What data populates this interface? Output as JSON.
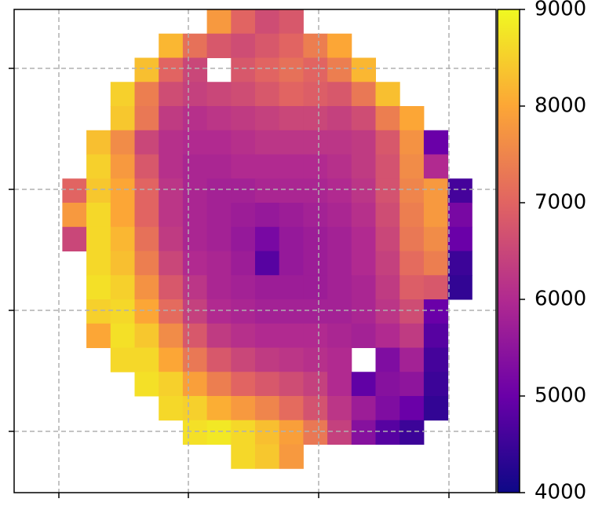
{
  "chart_data": {
    "type": "heatmap",
    "colormap": [
      "#0d0887",
      "#6a00a8",
      "#b12a90",
      "#e16462",
      "#fca636",
      "#f0f921"
    ],
    "zlim": [
      4000,
      9000
    ],
    "cbar_ticks": [
      4000,
      5000,
      6000,
      7000,
      8000,
      9000
    ],
    "grid": true,
    "z": [
      [
        null,
        null,
        null,
        null,
        null,
        null,
        null,
        null,
        7800,
        7000,
        6600,
        6800,
        null,
        null,
        null,
        null,
        null,
        null,
        null,
        null
      ],
      [
        null,
        null,
        null,
        null,
        null,
        null,
        8200,
        7200,
        6800,
        6600,
        6800,
        7000,
        7400,
        8000,
        null,
        null,
        null,
        null,
        null,
        null
      ],
      [
        null,
        null,
        null,
        null,
        null,
        8300,
        7000,
        6500,
        null,
        6800,
        7000,
        7200,
        7000,
        7400,
        8200,
        null,
        null,
        null,
        null,
        null
      ],
      [
        null,
        null,
        null,
        null,
        8500,
        7400,
        6600,
        6400,
        6500,
        6600,
        6800,
        7000,
        6900,
        6800,
        7300,
        8300,
        null,
        null,
        null,
        null
      ],
      [
        null,
        null,
        null,
        null,
        8400,
        7300,
        6300,
        6100,
        6200,
        6300,
        6400,
        6500,
        6500,
        6400,
        6600,
        7400,
        8000,
        null,
        null,
        null
      ],
      [
        null,
        null,
        null,
        8300,
        7600,
        6500,
        6100,
        6000,
        6000,
        6100,
        6200,
        6200,
        6200,
        6200,
        6300,
        6800,
        7700,
        5000,
        null,
        null
      ],
      [
        null,
        null,
        null,
        8500,
        7800,
        6800,
        6100,
        5900,
        5900,
        6000,
        6000,
        6000,
        6000,
        6100,
        6300,
        6700,
        7600,
        6000,
        null,
        null
      ],
      [
        null,
        null,
        7000,
        8400,
        8000,
        7000,
        6200,
        5900,
        5800,
        5800,
        5900,
        5900,
        5900,
        6000,
        6200,
        6700,
        7500,
        7800,
        4600,
        null
      ],
      [
        null,
        null,
        7800,
        8600,
        8000,
        7000,
        6200,
        5900,
        5800,
        5700,
        5600,
        5700,
        5800,
        5900,
        6100,
        6600,
        7400,
        7800,
        5200,
        null
      ],
      [
        null,
        null,
        6500,
        8600,
        8200,
        7200,
        6300,
        5900,
        5800,
        5600,
        5200,
        5600,
        5700,
        5800,
        6000,
        6500,
        7300,
        7600,
        5000,
        null
      ],
      [
        null,
        null,
        null,
        8600,
        8300,
        7400,
        6500,
        6000,
        5900,
        5700,
        4800,
        5600,
        5700,
        5800,
        6000,
        6400,
        7100,
        7400,
        4500,
        null
      ],
      [
        null,
        null,
        null,
        8700,
        8500,
        7700,
        6800,
        6200,
        5900,
        5800,
        5700,
        5700,
        5700,
        5800,
        5900,
        6300,
        6900,
        6800,
        4400,
        null
      ],
      [
        null,
        null,
        null,
        8500,
        8600,
        8000,
        7100,
        6400,
        6000,
        5900,
        5800,
        5800,
        5800,
        5800,
        5900,
        6200,
        6600,
        5000,
        null,
        null
      ],
      [
        null,
        null,
        null,
        8000,
        8700,
        8400,
        7600,
        6800,
        6300,
        6100,
        6000,
        6000,
        6000,
        5900,
        5800,
        6000,
        6300,
        4800,
        null,
        null
      ],
      [
        null,
        null,
        null,
        null,
        8600,
        8600,
        8000,
        7300,
        6800,
        6500,
        6300,
        6200,
        6100,
        6000,
        null,
        5300,
        5800,
        4600,
        null,
        null
      ],
      [
        null,
        null,
        null,
        null,
        null,
        8700,
        8500,
        7900,
        7400,
        7000,
        6800,
        6600,
        6400,
        6000,
        4900,
        5400,
        5500,
        4500,
        null,
        null
      ],
      [
        null,
        null,
        null,
        null,
        null,
        null,
        8600,
        8500,
        8100,
        7800,
        7500,
        7100,
        6700,
        6200,
        5700,
        5300,
        5000,
        4400,
        null,
        null
      ],
      [
        null,
        null,
        null,
        null,
        null,
        null,
        null,
        8700,
        8800,
        8600,
        8300,
        7900,
        7300,
        6400,
        5400,
        4800,
        4500,
        null,
        null,
        null
      ],
      [
        null,
        null,
        null,
        null,
        null,
        null,
        null,
        null,
        null,
        8600,
        8400,
        7800,
        null,
        null,
        null,
        null,
        null,
        null,
        null,
        null
      ],
      [
        null,
        null,
        null,
        null,
        null,
        null,
        null,
        null,
        null,
        null,
        null,
        null,
        null,
        null,
        null,
        null,
        null,
        null,
        null,
        null
      ]
    ]
  }
}
